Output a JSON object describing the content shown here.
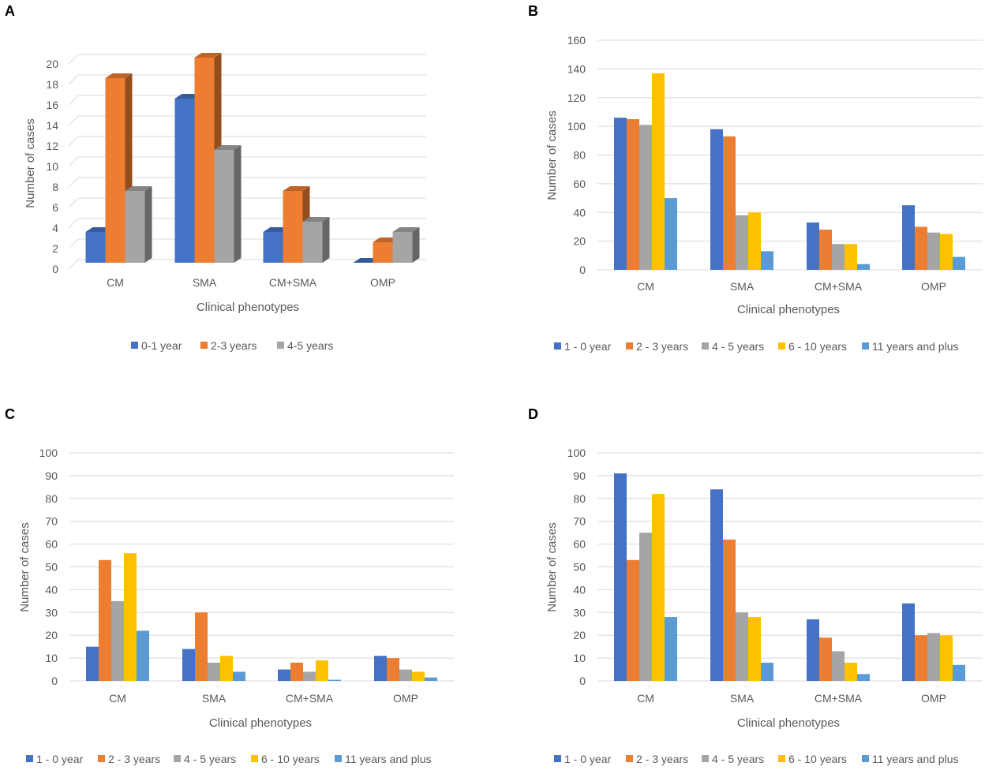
{
  "colors": {
    "series1": "#4472c4",
    "series2": "#ed7d31",
    "series3": "#a5a5a5",
    "series4": "#ffc000",
    "series5": "#5b9bd5",
    "grid": "#d9d9d9",
    "text": "#595959"
  },
  "chart_data": [
    {
      "panel": "A",
      "type": "bar",
      "style": "3d",
      "title": "",
      "xlabel": "Clinical phenotypes",
      "ylabel": "Number  of cases",
      "ylim": [
        0,
        20
      ],
      "yticks": [
        0,
        2,
        4,
        6,
        8,
        10,
        12,
        14,
        16,
        18,
        20
      ],
      "grid": true,
      "legend_position": "bottom",
      "categories": [
        "CM",
        "SMA",
        "CM+SMA",
        "OMP"
      ],
      "series": [
        {
          "name": "0-1 year",
          "values": [
            3,
            16,
            3,
            0
          ]
        },
        {
          "name": "2-3 years",
          "values": [
            18,
            20,
            7,
            2
          ]
        },
        {
          "name": "4-5 years",
          "values": [
            7,
            11,
            4,
            3
          ]
        }
      ]
    },
    {
      "panel": "B",
      "type": "bar",
      "title": "",
      "xlabel": "Clinical phenotypes",
      "ylabel": "Number  of cases",
      "ylim": [
        0,
        160
      ],
      "yticks": [
        0,
        20,
        40,
        60,
        80,
        100,
        120,
        140,
        160
      ],
      "grid": true,
      "legend_position": "bottom",
      "categories": [
        "CM",
        "SMA",
        "CM+SMA",
        "OMP"
      ],
      "series": [
        {
          "name": "1 - 0 year",
          "values": [
            106,
            98,
            33,
            45
          ]
        },
        {
          "name": "2 - 3 years",
          "values": [
            105,
            93,
            28,
            30
          ]
        },
        {
          "name": "4 - 5 years",
          "values": [
            101,
            38,
            18,
            26
          ]
        },
        {
          "name": "6 - 10 years",
          "values": [
            137,
            40,
            18,
            25
          ]
        },
        {
          "name": "11 years and plus",
          "values": [
            50,
            13,
            4,
            9
          ]
        }
      ]
    },
    {
      "panel": "C",
      "type": "bar",
      "title": "",
      "xlabel": "Clinical phenotypes",
      "ylabel": "Number  of cases",
      "ylim": [
        0,
        100
      ],
      "yticks": [
        0,
        10,
        20,
        30,
        40,
        50,
        60,
        70,
        80,
        90,
        100
      ],
      "grid": true,
      "legend_position": "bottom",
      "categories": [
        "CM",
        "SMA",
        "CM+SMA",
        "OMP"
      ],
      "series": [
        {
          "name": "1 - 0 year",
          "values": [
            15,
            14,
            5,
            11
          ]
        },
        {
          "name": "2 - 3 years",
          "values": [
            53,
            30,
            8,
            10
          ]
        },
        {
          "name": "4 - 5 years",
          "values": [
            35,
            8,
            4,
            5
          ]
        },
        {
          "name": "6 - 10 years",
          "values": [
            56,
            11,
            9,
            4
          ]
        },
        {
          "name": "11 years and plus",
          "values": [
            22,
            4,
            0.5,
            1.5
          ]
        }
      ]
    },
    {
      "panel": "D",
      "type": "bar",
      "title": "",
      "xlabel": "Clinical phenotypes",
      "ylabel": "Number  of cases",
      "ylim": [
        0,
        100
      ],
      "yticks": [
        0,
        10,
        20,
        30,
        40,
        50,
        60,
        70,
        80,
        90,
        100
      ],
      "grid": true,
      "legend_position": "bottom",
      "categories": [
        "CM",
        "SMA",
        "CM+SMA",
        "OMP"
      ],
      "series": [
        {
          "name": "1 - 0 year",
          "values": [
            91,
            84,
            27,
            34
          ]
        },
        {
          "name": "2 - 3 years",
          "values": [
            53,
            62,
            19,
            20
          ]
        },
        {
          "name": "4 - 5 years",
          "values": [
            65,
            30,
            13,
            21
          ]
        },
        {
          "name": "6 - 10 years",
          "values": [
            82,
            28,
            8,
            20
          ]
        },
        {
          "name": "11 years and plus",
          "values": [
            28,
            8,
            3,
            7
          ]
        }
      ]
    }
  ]
}
